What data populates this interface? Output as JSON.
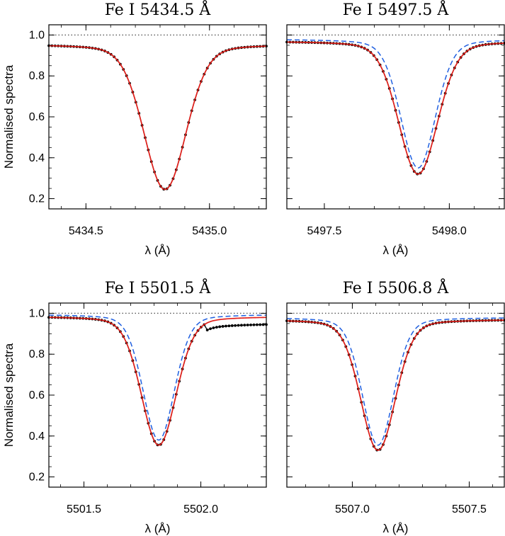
{
  "ylabel": "Normalised spectra",
  "xlabel": "λ (Å)",
  "colors": {
    "observed": "#000000",
    "red_model": "#e0201b",
    "blue_model": "#1f5fe0",
    "continuum": "#555555"
  },
  "chart_data": [
    {
      "type": "line",
      "title": "Fe I  5434.5 Å",
      "xlim": [
        5434.35,
        5435.23
      ],
      "ylim": [
        0.15,
        1.05
      ],
      "xticks": [
        "5434.5",
        "5435.0"
      ],
      "yticks": [
        "0.2",
        "0.4",
        "0.6",
        "0.8",
        "1.0"
      ],
      "grid": false,
      "line": {
        "center": 5434.82,
        "depth": 0.71,
        "width": 0.115,
        "baseline": 0.955,
        "asym": 0.0
      },
      "series": [
        {
          "style": "observed dots",
          "dy": 0.0
        },
        {
          "style": "red solid",
          "dy": 0.0
        }
      ]
    },
    {
      "type": "line",
      "title": "Fe I  5497.5 Å",
      "xlim": [
        5497.35,
        5498.22
      ],
      "ylim": [
        0.15,
        1.05
      ],
      "xticks": [
        "5497.5",
        "5498.0"
      ],
      "yticks": [
        "0.2",
        "0.4",
        "0.6",
        "0.8",
        "1.0"
      ],
      "grid": false,
      "line": {
        "center": 5497.875,
        "depth": 0.65,
        "width": 0.105,
        "baseline": 0.97,
        "asym": 0.0
      },
      "series": [
        {
          "style": "observed dots",
          "dy": 0.0
        },
        {
          "style": "red solid",
          "dy": 0.0
        },
        {
          "style": "blue dashed",
          "dy": 0.02,
          "dw": -0.012
        }
      ]
    },
    {
      "type": "line",
      "title": "Fe I  5501.5 Å",
      "xlim": [
        5501.35,
        5502.28
      ],
      "ylim": [
        0.15,
        1.05
      ],
      "xticks": [
        "5501.5",
        "5502.0"
      ],
      "yticks": [
        "0.2",
        "0.4",
        "0.6",
        "0.8",
        "1.0"
      ],
      "grid": false,
      "line": {
        "center": 5501.82,
        "depth": 0.63,
        "width": 0.1,
        "baseline": 0.985,
        "asym": 0.0
      },
      "series": [
        {
          "style": "observed dots",
          "dy": 0.0
        },
        {
          "style": "red solid",
          "dy": 0.0
        },
        {
          "style": "blue dashed",
          "dy": 0.015,
          "dw": -0.01
        }
      ]
    },
    {
      "type": "line",
      "title": "Fe I  5506.8 Å",
      "xlim": [
        5506.72,
        5507.65
      ],
      "ylim": [
        0.15,
        1.05
      ],
      "xticks": [
        "5507.0",
        "5507.5"
      ],
      "yticks": [
        "0.2",
        "0.4",
        "0.6",
        "0.8",
        "1.0"
      ],
      "grid": false,
      "line": {
        "center": 5507.11,
        "depth": 0.64,
        "width": 0.1,
        "baseline": 0.97,
        "asym": 0.0
      },
      "series": [
        {
          "style": "observed dots",
          "dy": 0.0
        },
        {
          "style": "red solid",
          "dy": 0.0
        },
        {
          "style": "blue dashed",
          "dy": 0.015,
          "dw": -0.01
        }
      ]
    }
  ]
}
